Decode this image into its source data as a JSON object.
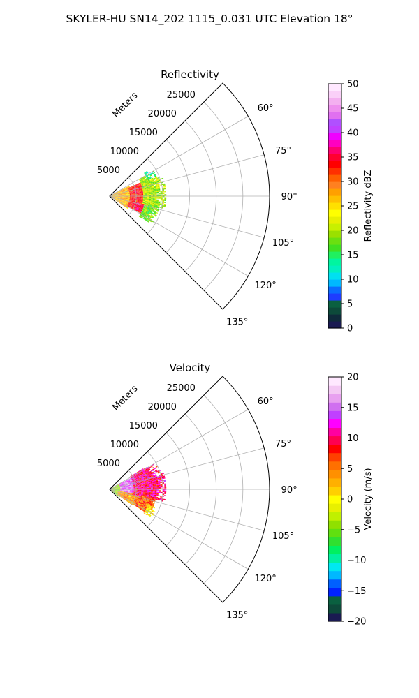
{
  "suptitle": "SKYLER-HU  SN14_202  1115_0.031 UTC Elevation 18°",
  "chart_data": [
    {
      "type": "heatmap",
      "projection": "polar-sector",
      "title": "Reflectivity",
      "range_label": "Meters",
      "range_ticks": [
        5000,
        10000,
        15000,
        20000,
        25000
      ],
      "range_lim": [
        0,
        30000
      ],
      "azimuth_lim": [
        45,
        135
      ],
      "azimuth_ticks": [
        "60°",
        "75°",
        "90°",
        "105°",
        "120°",
        "135°"
      ],
      "grid": true,
      "data_extent": {
        "azimuth": [
          50,
          130
        ],
        "range_m": [
          0,
          11000
        ]
      },
      "colorbar": {
        "label": "Reflectivity dBZ",
        "ticks": [
          0,
          5,
          10,
          15,
          20,
          25,
          30,
          35,
          40,
          45,
          50
        ],
        "lim": [
          0,
          50
        ],
        "colors": [
          "#1a1a52",
          "#0f2a3a",
          "#0d4a3a",
          "#0a6040",
          "#1e3cff",
          "#0a6cff",
          "#00b8ff",
          "#00e0f0",
          "#00f0c0",
          "#00f5a0",
          "#20f060",
          "#40e020",
          "#6ae010",
          "#9ae000",
          "#c8f000",
          "#e8f000",
          "#ffff00",
          "#ffe000",
          "#ffc000",
          "#ffa000",
          "#ff8020",
          "#ff6000",
          "#ff3000",
          "#ff0000",
          "#ff0030",
          "#ff0070",
          "#ff00c0",
          "#f000ff",
          "#c040ff",
          "#b050ff",
          "#e070f0",
          "#ee90ee",
          "#f4b0f0",
          "#fad0f8",
          "#ffe8ff"
        ]
      },
      "regions": [
        {
          "az": [
            62,
            124
          ],
          "r": [
            0,
            4000
          ],
          "value": 27
        },
        {
          "az": [
            66,
            118
          ],
          "r": [
            3500,
            6500
          ],
          "value": 33
        },
        {
          "az": [
            104,
            116
          ],
          "r": [
            5000,
            8000
          ],
          "value": 36
        },
        {
          "az": [
            60,
            102
          ],
          "r": [
            6000,
            10500
          ],
          "value": 20
        },
        {
          "az": [
            102,
            124
          ],
          "r": [
            6500,
            9500
          ],
          "value": 18
        },
        {
          "az": [
            56,
            66
          ],
          "r": [
            7500,
            11000
          ],
          "value": 14
        }
      ]
    },
    {
      "type": "heatmap",
      "projection": "polar-sector",
      "title": "Velocity",
      "range_label": "Meters",
      "range_ticks": [
        5000,
        10000,
        15000,
        20000,
        25000
      ],
      "range_lim": [
        0,
        30000
      ],
      "azimuth_lim": [
        45,
        135
      ],
      "azimuth_ticks": [
        "60°",
        "75°",
        "90°",
        "105°",
        "120°",
        "135°"
      ],
      "grid": true,
      "data_extent": {
        "azimuth": [
          50,
          130
        ],
        "range_m": [
          0,
          11000
        ]
      },
      "colorbar": {
        "label": "Velocity (m/s)",
        "ticks": [
          -20,
          -15,
          -10,
          -5,
          0,
          5,
          10,
          15,
          20
        ],
        "lim": [
          -20,
          20
        ],
        "colors": [
          "#1a1a52",
          "#0d4a3a",
          "#0a6040",
          "#0022ff",
          "#0060ff",
          "#00b8ff",
          "#00e8f0",
          "#00f0a0",
          "#00f060",
          "#30e030",
          "#60e010",
          "#90e000",
          "#c0f000",
          "#e8f000",
          "#ffff00",
          "#ffd000",
          "#ffb000",
          "#ff9000",
          "#ff7000",
          "#ff4000",
          "#ff0000",
          "#ff0050",
          "#ff00a0",
          "#ff00ff",
          "#c040ff",
          "#d070f0",
          "#e8a0f0",
          "#f4c8f4",
          "#ffe8ff"
        ]
      },
      "regions": [
        {
          "az": [
            60,
            128
          ],
          "r": [
            0,
            2000
          ],
          "value": -4
        },
        {
          "az": [
            62,
            100
          ],
          "r": [
            1800,
            4500
          ],
          "value": 15
        },
        {
          "az": [
            100,
            124
          ],
          "r": [
            1500,
            5000
          ],
          "value": 4
        },
        {
          "az": [
            58,
            102
          ],
          "r": [
            4500,
            10500
          ],
          "value": 10
        },
        {
          "az": [
            102,
            122
          ],
          "r": [
            5000,
            8500
          ],
          "value": 6
        },
        {
          "az": [
            112,
            124
          ],
          "r": [
            7500,
            9500
          ],
          "value": 1
        }
      ]
    }
  ]
}
